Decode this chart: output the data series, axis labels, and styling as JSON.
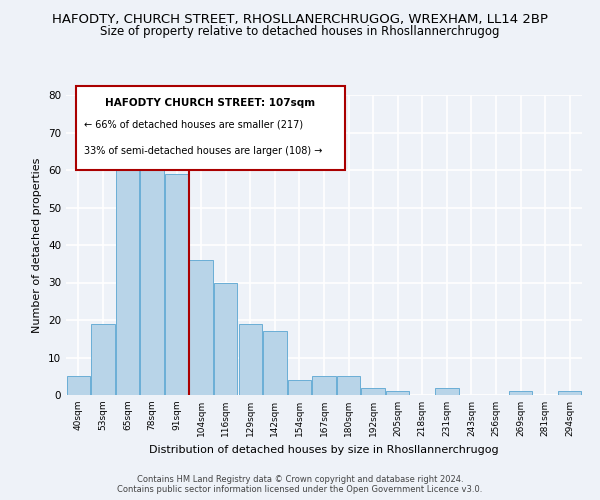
{
  "title1": "HAFODTY, CHURCH STREET, RHOSLLANERCHRUGOG, WREXHAM, LL14 2BP",
  "title2": "Size of property relative to detached houses in Rhosllannerchrugog",
  "xlabel": "Distribution of detached houses by size in Rhosllannerchrugog",
  "ylabel": "Number of detached properties",
  "categories": [
    "40sqm",
    "53sqm",
    "65sqm",
    "78sqm",
    "91sqm",
    "104sqm",
    "116sqm",
    "129sqm",
    "142sqm",
    "154sqm",
    "167sqm",
    "180sqm",
    "192sqm",
    "205sqm",
    "218sqm",
    "231sqm",
    "243sqm",
    "256sqm",
    "269sqm",
    "281sqm",
    "294sqm"
  ],
  "values": [
    5,
    19,
    63,
    61,
    59,
    36,
    30,
    19,
    17,
    4,
    5,
    5,
    2,
    1,
    0,
    2,
    0,
    0,
    1,
    0,
    1
  ],
  "bar_color": "#b8d4e8",
  "bar_edge_color": "#6aaed6",
  "vline_color": "#aa0000",
  "ylim": [
    0,
    80
  ],
  "yticks": [
    0,
    10,
    20,
    30,
    40,
    50,
    60,
    70,
    80
  ],
  "annotation_title": "HAFODTY CHURCH STREET: 107sqm",
  "annotation_line1": "← 66% of detached houses are smaller (217)",
  "annotation_line2": "33% of semi-detached houses are larger (108) →",
  "footer1": "Contains HM Land Registry data © Crown copyright and database right 2024.",
  "footer2": "Contains public sector information licensed under the Open Government Licence v3.0.",
  "bg_color": "#eef2f8",
  "plot_bg_color": "#eef2f8",
  "grid_color": "#ffffff",
  "title1_fontsize": 9.5,
  "title2_fontsize": 8.5,
  "xlabel_fontsize": 8,
  "ylabel_fontsize": 8
}
